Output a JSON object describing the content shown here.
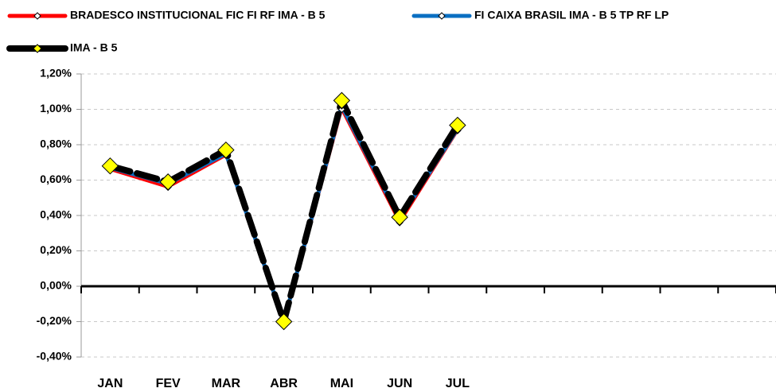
{
  "chart_data": {
    "type": "line",
    "categories": [
      "JAN",
      "FEV",
      "MAR",
      "ABR",
      "MAI",
      "JUN",
      "JUL",
      null,
      null,
      null,
      null,
      null
    ],
    "series": [
      {
        "name": "BRADESCO INSTITUCIONAL FIC FI RF IMA - B 5",
        "color": "#ff0000",
        "marker_color": "#ffffff",
        "values": [
          0.66,
          0.56,
          0.74,
          -0.21,
          1.0,
          0.36,
          0.88,
          null,
          null,
          null,
          null,
          null
        ]
      },
      {
        "name": "FI CAIXA BRASIL IMA - B 5 TP RF LP",
        "color": "#0a6fc2",
        "marker_color": "#ffffff",
        "values": [
          0.67,
          0.58,
          0.75,
          -0.2,
          1.02,
          0.38,
          0.89,
          null,
          null,
          null,
          null,
          null
        ]
      },
      {
        "name": "IMA - B 5",
        "color": "#000000",
        "marker_color": "#ffff00",
        "values": [
          0.68,
          0.59,
          0.77,
          -0.2,
          1.05,
          0.39,
          0.91,
          null,
          null,
          null,
          null,
          null
        ]
      }
    ],
    "ylim": [
      -0.4,
      1.2
    ],
    "yticks": [
      {
        "value": -0.4,
        "label": "-0,40%"
      },
      {
        "value": -0.2,
        "label": "-0,20%"
      },
      {
        "value": 0,
        "label": "0,00%"
      },
      {
        "value": 0.2,
        "label": "0,20%"
      },
      {
        "value": 0.4,
        "label": "0,40%"
      },
      {
        "value": 0.6,
        "label": "0,60%"
      },
      {
        "value": 0.8,
        "label": "0,80%"
      },
      {
        "value": 1.0,
        "label": "1,00%"
      },
      {
        "value": 1.2,
        "label": "1,20%"
      }
    ],
    "grid": true
  }
}
